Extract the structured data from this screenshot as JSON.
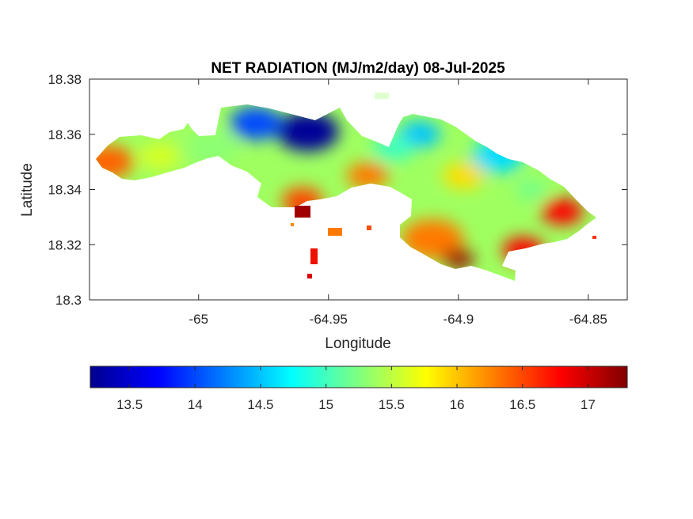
{
  "chart_data": {
    "type": "heatmap",
    "title": "NET RADIATION (MJ/m2/day) 08-Jul-2025",
    "xlabel": "Longitude",
    "ylabel": "Latitude",
    "xlim": [
      -65.042,
      -64.835
    ],
    "ylim": [
      18.3,
      18.38
    ],
    "x_ticks": [
      "-65",
      "-64.95",
      "-64.9",
      "-64.85"
    ],
    "x_tick_values": [
      -65.0,
      -64.95,
      -64.9,
      -64.85
    ],
    "y_ticks": [
      "18.3",
      "18.32",
      "18.34",
      "18.36",
      "18.38"
    ],
    "y_tick_values": [
      18.3,
      18.32,
      18.34,
      18.36,
      18.38
    ],
    "colorbar": {
      "orientation": "horizontal",
      "colormap": "jet",
      "range": [
        13.2,
        17.3
      ],
      "ticks": [
        "13.5",
        "14",
        "14.5",
        "15",
        "15.5",
        "16",
        "16.5",
        "17"
      ],
      "tick_values": [
        13.5,
        14,
        14.5,
        15,
        15.5,
        16,
        16.5,
        17
      ]
    },
    "value_blobs": [
      {
        "lon": -64.958,
        "lat": 18.361,
        "value": 13.3,
        "r": 0.012
      },
      {
        "lon": -64.978,
        "lat": 18.364,
        "value": 14.0,
        "r": 0.01
      },
      {
        "lon": -64.915,
        "lat": 18.36,
        "value": 14.5,
        "r": 0.008
      },
      {
        "lon": -64.885,
        "lat": 18.352,
        "value": 14.6,
        "r": 0.01
      },
      {
        "lon": -64.872,
        "lat": 18.34,
        "value": 15.2,
        "r": 0.006
      },
      {
        "lon": -65.035,
        "lat": 18.35,
        "value": 16.4,
        "r": 0.01
      },
      {
        "lon": -65.015,
        "lat": 18.352,
        "value": 15.6,
        "r": 0.008
      },
      {
        "lon": -64.995,
        "lat": 18.355,
        "value": 15.3,
        "r": 0.01
      },
      {
        "lon": -64.96,
        "lat": 18.336,
        "value": 16.5,
        "r": 0.008
      },
      {
        "lon": -64.96,
        "lat": 18.33,
        "value": 17.2,
        "r": 0.004
      },
      {
        "lon": -64.935,
        "lat": 18.345,
        "value": 16.3,
        "r": 0.008
      },
      {
        "lon": -64.91,
        "lat": 18.322,
        "value": 16.3,
        "r": 0.012
      },
      {
        "lon": -64.9,
        "lat": 18.315,
        "value": 17.2,
        "r": 0.006
      },
      {
        "lon": -64.875,
        "lat": 18.318,
        "value": 16.8,
        "r": 0.008
      },
      {
        "lon": -64.86,
        "lat": 18.332,
        "value": 16.8,
        "r": 0.008
      },
      {
        "lon": -64.898,
        "lat": 18.345,
        "value": 15.9,
        "r": 0.008
      },
      {
        "lon": -64.925,
        "lat": 18.355,
        "value": 15.0,
        "r": 0.008
      }
    ]
  }
}
